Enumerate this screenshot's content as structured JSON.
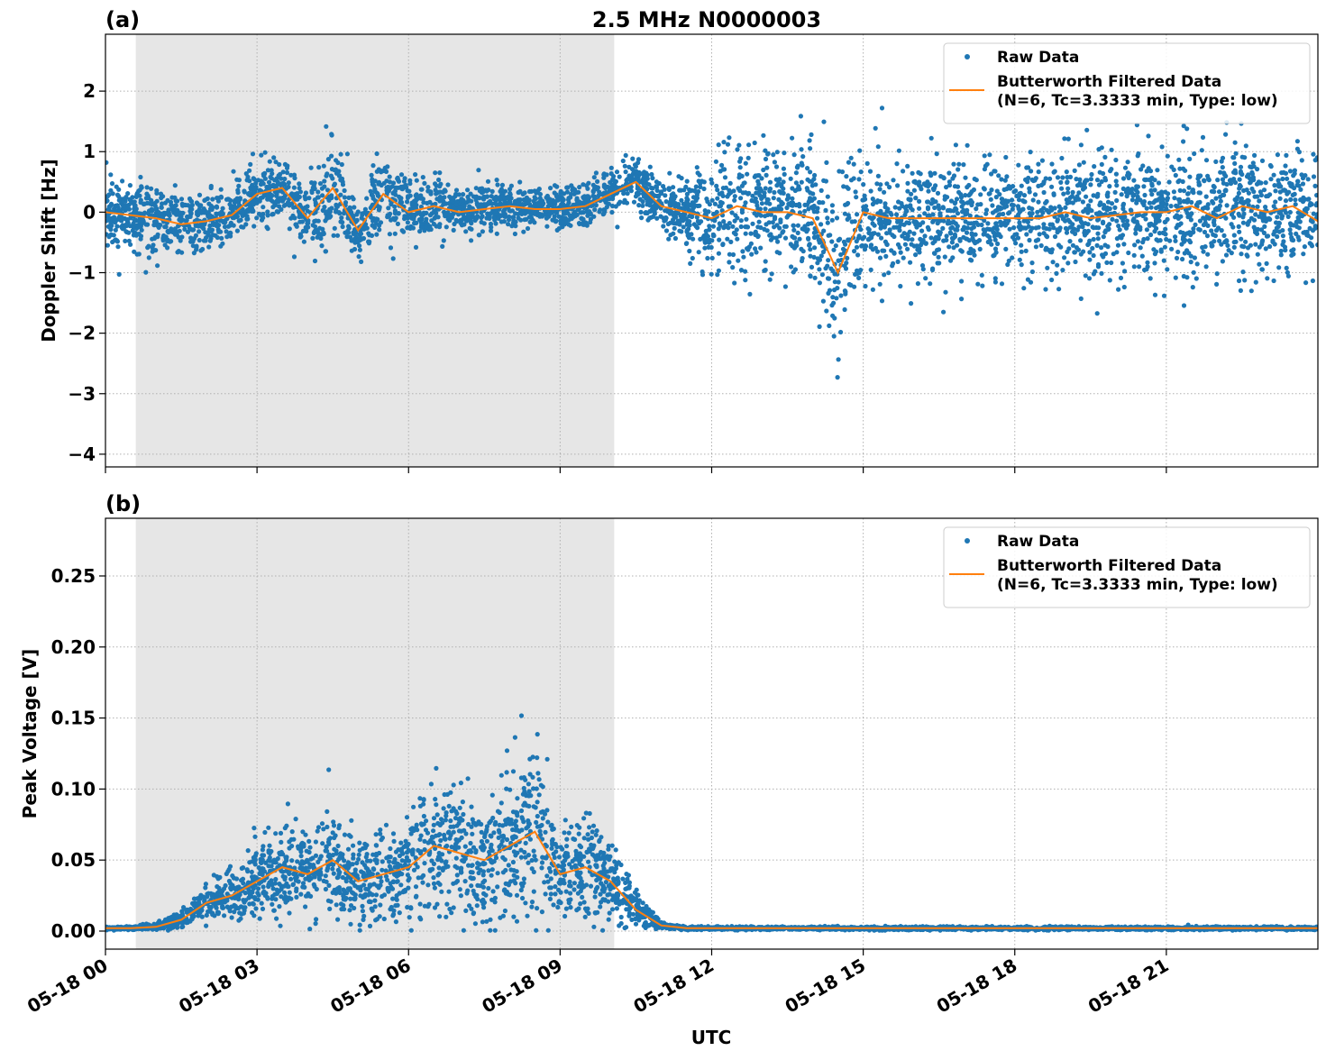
{
  "chart_data": [
    {
      "type": "scatter",
      "panel_label": "(a)",
      "title": "2.5 MHz N0000003",
      "xlabel": "",
      "ylabel": "Doppler Shift [Hz]",
      "xlim_hours_utc": [
        0,
        24
      ],
      "ylim": [
        -4.21,
        2.94
      ],
      "yticks": [
        -4,
        -3,
        -2,
        -1,
        0,
        1,
        2
      ],
      "ytick_labels": [
        "−4",
        "−3",
        "−2",
        "−1",
        "0",
        "1",
        "2"
      ],
      "grid": true,
      "legend_position": "top-right",
      "legend": [
        "Raw Data",
        "Butterworth Filtered Data\n(N=6, Tc=3.3333 min, Type: low)"
      ],
      "legend_lines": [
        "Raw Data",
        "Butterworth Filtered Data",
        "(N=6, Tc=3.3333 min, Type: low)"
      ],
      "shaded_region_hours_utc": [
        0.6,
        10.07
      ],
      "x_hours": [
        0,
        0.5,
        1,
        1.5,
        2,
        2.5,
        3,
        3.5,
        4,
        4.5,
        5,
        5.5,
        6,
        6.5,
        7,
        7.5,
        8,
        8.5,
        9,
        9.5,
        10,
        10.5,
        11,
        11.5,
        12,
        12.5,
        13,
        13.5,
        14,
        14.5,
        15,
        15.5,
        16,
        16.5,
        17,
        17.5,
        18,
        18.5,
        19,
        19.5,
        20,
        20.5,
        21,
        21.5,
        22,
        22.5,
        23,
        23.5,
        24
      ],
      "series": [
        {
          "name": "Butterworth Filtered Data",
          "values": [
            0,
            -0.05,
            -0.1,
            -0.2,
            -0.15,
            -0.05,
            0.3,
            0.4,
            -0.1,
            0.4,
            -0.3,
            0.3,
            0,
            0.1,
            0,
            0.05,
            0.1,
            0.05,
            0.05,
            0.1,
            0.3,
            0.5,
            0.1,
            0,
            -0.1,
            0.1,
            0,
            0,
            -0.1,
            -1.0,
            0,
            -0.1,
            -0.1,
            -0.1,
            -0.1,
            -0.1,
            -0.1,
            -0.1,
            0,
            -0.1,
            -0.05,
            0,
            0,
            0.1,
            -0.1,
            0.1,
            0,
            0.1,
            -0.15
          ]
        },
        {
          "name": "Raw Data",
          "spread": [
            0.55,
            0.5,
            0.5,
            0.5,
            0.45,
            0.4,
            0.6,
            0.5,
            0.55,
            0.7,
            0.6,
            0.55,
            0.45,
            0.45,
            0.4,
            0.35,
            0.3,
            0.3,
            0.3,
            0.3,
            0.35,
            0.4,
            0.35,
            0.5,
            0.8,
            0.9,
            0.95,
            0.95,
            0.95,
            1.1,
            0.9,
            0.85,
            0.85,
            0.85,
            0.85,
            0.85,
            0.85,
            0.9,
            0.95,
            0.95,
            0.95,
            0.95,
            0.95,
            0.95,
            0.95,
            0.95,
            1.0,
            0.9,
            0.9
          ]
        }
      ]
    },
    {
      "type": "scatter",
      "panel_label": "(b)",
      "xlabel": "UTC",
      "ylabel": "Peak Voltage [V]",
      "xlim_hours_utc": [
        0,
        24
      ],
      "ylim": [
        -0.0127,
        0.2906
      ],
      "yticks": [
        0,
        0.05,
        0.1,
        0.15,
        0.2,
        0.25
      ],
      "ytick_labels": [
        "0.00",
        "0.05",
        "0.10",
        "0.15",
        "0.20",
        "0.25"
      ],
      "xticks_hours_utc": [
        0,
        3,
        6,
        9,
        12,
        15,
        18,
        21
      ],
      "xtick_labels": [
        "05-18 00",
        "05-18 03",
        "05-18 06",
        "05-18 09",
        "05-18 12",
        "05-18 15",
        "05-18 18",
        "05-18 21"
      ],
      "grid": true,
      "legend_position": "top-right",
      "legend_lines": [
        "Raw Data",
        "Butterworth Filtered Data",
        "(N=6, Tc=3.3333 min, Type: low)"
      ],
      "shaded_region_hours_utc": [
        0.6,
        10.07
      ],
      "x_hours": [
        0,
        0.5,
        1,
        1.5,
        2,
        2.5,
        3,
        3.5,
        4,
        4.5,
        5,
        5.5,
        6,
        6.5,
        7,
        7.5,
        8,
        8.5,
        9,
        9.5,
        10,
        10.5,
        11,
        11.5,
        12,
        12.5,
        13,
        13.5,
        14,
        14.5,
        15,
        15.5,
        16,
        16.5,
        17,
        17.5,
        18,
        18.5,
        19,
        19.5,
        20,
        20.5,
        21,
        21.5,
        22,
        22.5,
        23,
        23.5,
        24
      ],
      "series": [
        {
          "name": "Butterworth Filtered Data",
          "values": [
            0.002,
            0.002,
            0.003,
            0.008,
            0.02,
            0.025,
            0.035,
            0.045,
            0.04,
            0.05,
            0.035,
            0.04,
            0.045,
            0.06,
            0.055,
            0.05,
            0.06,
            0.07,
            0.04,
            0.045,
            0.035,
            0.015,
            0.004,
            0.002,
            0.002,
            0.002,
            0.002,
            0.002,
            0.002,
            0.002,
            0.002,
            0.002,
            0.002,
            0.002,
            0.002,
            0.002,
            0.002,
            0.002,
            0.002,
            0.002,
            0.002,
            0.002,
            0.002,
            0.002,
            0.002,
            0.002,
            0.002,
            0.002,
            0.002
          ]
        },
        {
          "name": "Raw Data",
          "spread": [
            0.001,
            0.001,
            0.002,
            0.005,
            0.012,
            0.016,
            0.022,
            0.03,
            0.028,
            0.034,
            0.025,
            0.03,
            0.034,
            0.045,
            0.04,
            0.038,
            0.045,
            0.055,
            0.03,
            0.03,
            0.025,
            0.012,
            0.002,
            0.001,
            0.001,
            0.001,
            0.001,
            0.001,
            0.001,
            0.001,
            0.001,
            0.001,
            0.001,
            0.001,
            0.001,
            0.001,
            0.001,
            0.001,
            0.001,
            0.001,
            0.001,
            0.001,
            0.001,
            0.001,
            0.001,
            0.001,
            0.001,
            0.001,
            0.001
          ]
        }
      ]
    }
  ],
  "colors": {
    "raw": "#1f77b4",
    "filtered": "#ff7f0e",
    "shade": "#e6e6e6",
    "grid": "#b0b0b0"
  }
}
